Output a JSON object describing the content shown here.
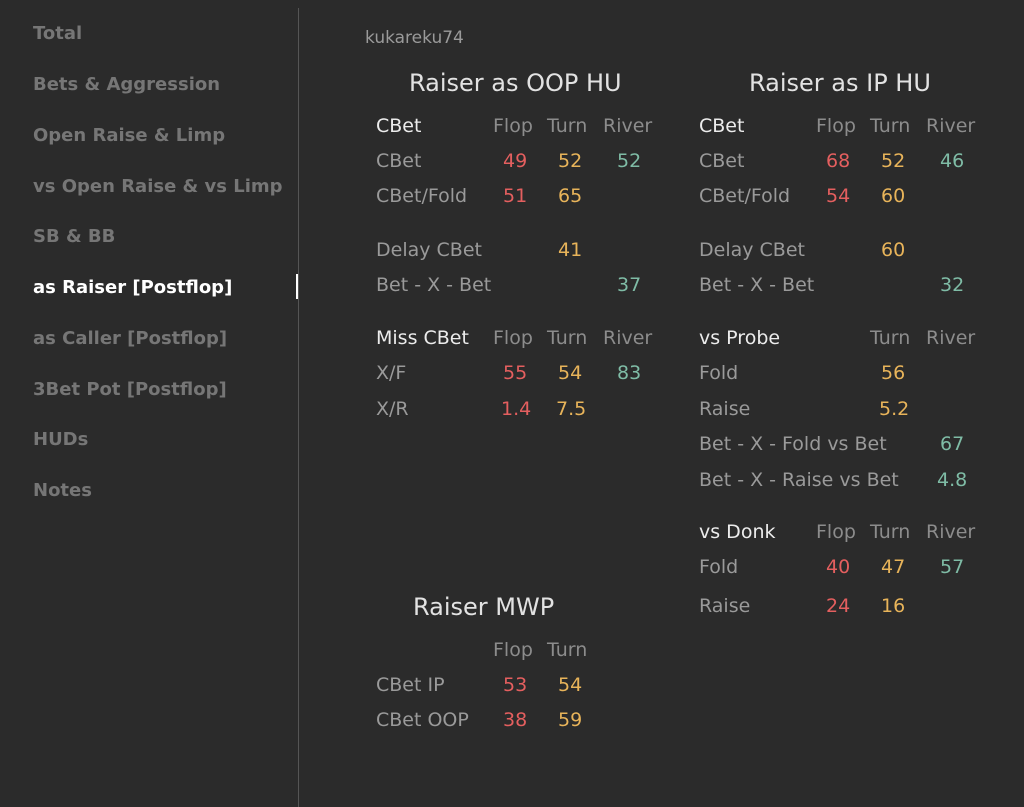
{
  "sidebar": {
    "items": [
      {
        "label": "Total"
      },
      {
        "label": "Bets & Aggression"
      },
      {
        "label": "Open Raise & Limp"
      },
      {
        "label": "vs Open Raise & vs Limp"
      },
      {
        "label": "SB & BB"
      },
      {
        "label": "as Raiser [Postflop]"
      },
      {
        "label": "as Caller [Postflop]"
      },
      {
        "label": "3Bet Pot [Postflop]"
      },
      {
        "label": "HUDs"
      },
      {
        "label": "Notes"
      }
    ],
    "active_index": 5
  },
  "player": "kukareku74",
  "colors": {
    "red": "#e45f5f",
    "yellow": "#e8b45a",
    "green": "#7fbca6"
  },
  "oop": {
    "title": "Raiser as OOP HU",
    "cbet_header": "CBet",
    "cols": {
      "flop": "Flop",
      "turn": "Turn",
      "river": "River"
    },
    "cbet": {
      "label": "CBet",
      "flop": "49",
      "turn": "52",
      "river": "52"
    },
    "cbet_fold": {
      "label": "CBet/Fold",
      "flop": "51",
      "turn": "65"
    },
    "delay_cbet": {
      "label": "Delay CBet",
      "turn": "41"
    },
    "bet_x_bet": {
      "label": "Bet - X - Bet",
      "river": "37"
    },
    "miss_header": "Miss CBet",
    "xf": {
      "label": "X/F",
      "flop": "55",
      "turn": "54",
      "river": "83"
    },
    "xr": {
      "label": "X/R",
      "flop": "1.4",
      "turn": "7.5"
    }
  },
  "ip": {
    "title": "Raiser as IP HU",
    "cbet_header": "CBet",
    "cols": {
      "flop": "Flop",
      "turn": "Turn",
      "river": "River"
    },
    "cbet": {
      "label": "CBet",
      "flop": "68",
      "turn": "52",
      "river": "46"
    },
    "cbet_fold": {
      "label": "CBet/Fold",
      "flop": "54",
      "turn": "60"
    },
    "delay_cbet": {
      "label": "Delay CBet",
      "turn": "60"
    },
    "bet_x_bet": {
      "label": "Bet - X - Bet",
      "river": "32"
    },
    "probe_header": "vs Probe",
    "probe_cols": {
      "turn": "Turn",
      "river": "River"
    },
    "probe_fold": {
      "label": "Fold",
      "turn": "56"
    },
    "probe_raise": {
      "label": "Raise",
      "turn": "5.2"
    },
    "bxf": {
      "label": "Bet - X - Fold vs Bet",
      "river": "67"
    },
    "bxr": {
      "label": "Bet - X - Raise vs Bet",
      "river": "4.8"
    },
    "donk_header": "vs Donk",
    "donk_cols": {
      "flop": "Flop",
      "turn": "Turn",
      "river": "River"
    },
    "donk_fold": {
      "label": "Fold",
      "flop": "40",
      "turn": "47",
      "river": "57"
    },
    "donk_raise": {
      "label": "Raise",
      "flop": "24",
      "turn": "16"
    }
  },
  "mwp": {
    "title": "Raiser MWP",
    "cols": {
      "flop": "Flop",
      "turn": "Turn"
    },
    "cbet_ip": {
      "label": "CBet IP",
      "flop": "53",
      "turn": "54"
    },
    "cbet_oop": {
      "label": "CBet OOP",
      "flop": "38",
      "turn": "59"
    }
  }
}
